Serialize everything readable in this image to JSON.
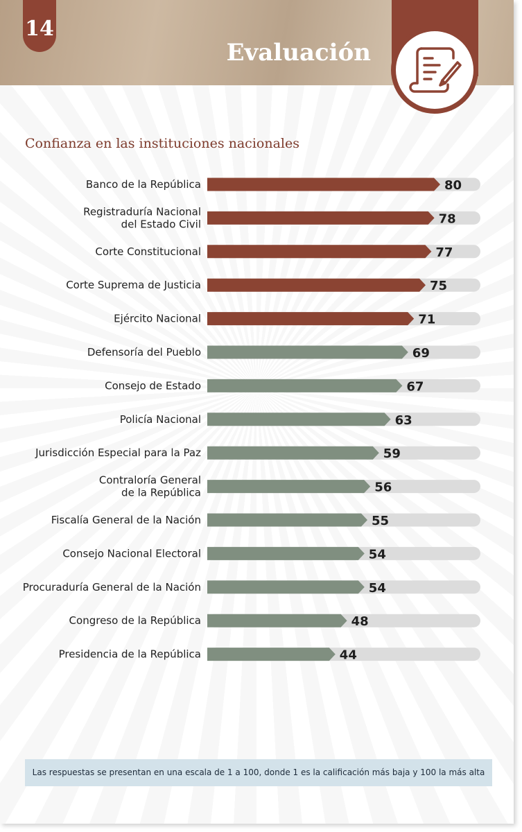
{
  "header": {
    "page_number": "14",
    "section_title": "Evaluación",
    "badge_icon": "document-quill-icon"
  },
  "colors": {
    "brand_brown": "#8e4434",
    "bar_high": "#8b4433",
    "bar_low": "#808f80",
    "track": "#dcdcdc",
    "footnote_bg": "#d3e2ea"
  },
  "chart_data": {
    "type": "bar",
    "orientation": "horizontal",
    "title": "Confianza en las instituciones nacionales",
    "xlim": [
      0,
      100
    ],
    "categories": [
      [
        "Banco de la República"
      ],
      [
        "Registraduría Nacional",
        "del Estado Civil"
      ],
      [
        "Corte Constitucional"
      ],
      [
        "Corte Suprema de Justicia"
      ],
      [
        "Ejército Nacional"
      ],
      [
        "Defensoría del Pueblo"
      ],
      [
        "Consejo de Estado"
      ],
      [
        "Policía Nacional"
      ],
      [
        "Jurisdicción Especial para la Paz"
      ],
      [
        "Contraloría General",
        "de la República"
      ],
      [
        "Fiscalía General de la Nación"
      ],
      [
        "Consejo Nacional Electoral"
      ],
      [
        "Procuraduría General de la Nación"
      ],
      [
        "Congreso de la República"
      ],
      [
        "Presidencia de la República"
      ]
    ],
    "values": [
      80,
      78,
      77,
      75,
      71,
      69,
      67,
      63,
      59,
      56,
      55,
      54,
      54,
      48,
      44
    ],
    "value_labels": [
      "80",
      "78",
      "77",
      "75",
      "71",
      "69",
      "67",
      "63",
      "59",
      "56",
      "55",
      "54",
      "54",
      "48",
      "44"
    ],
    "highlight_threshold": 70
  },
  "footnote": "Las respuestas se presentan en una escala de 1 a 100, donde 1 es la calificación más baja y 100 la más alta"
}
